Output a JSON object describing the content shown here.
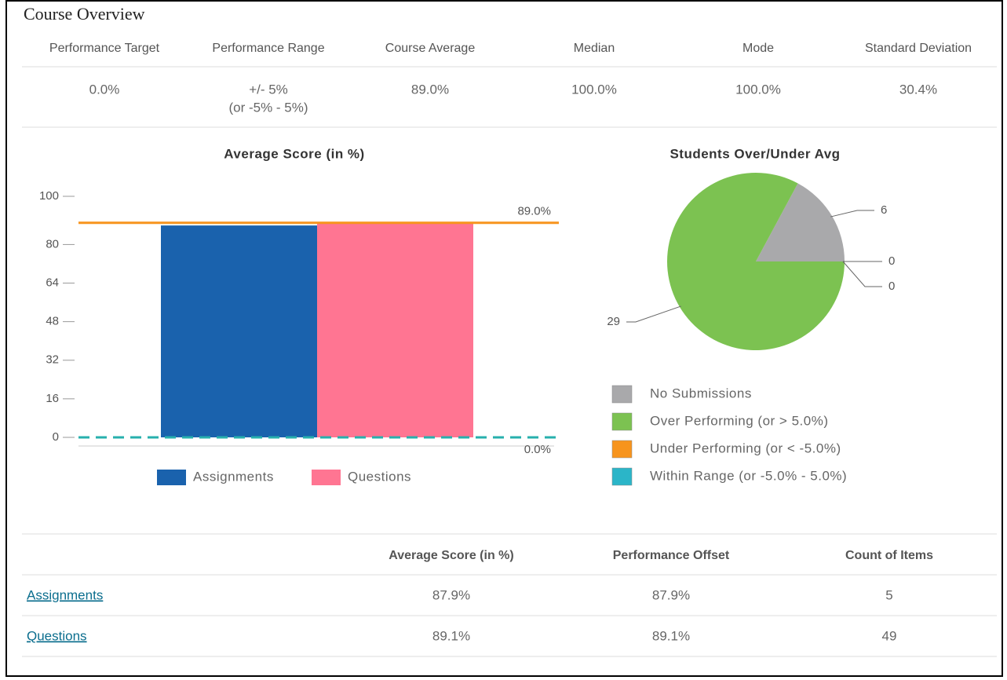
{
  "header": {
    "title": "Course Overview"
  },
  "stats": {
    "headers": [
      "Performance Target",
      "Performance Range",
      "Course Average",
      "Median",
      "Mode",
      "Standard Deviation"
    ],
    "values": [
      [
        "0.0%"
      ],
      [
        "+/- 5%",
        "(or -5% - 5%)"
      ],
      [
        "89.0%"
      ],
      [
        "100.0%"
      ],
      [
        "100.0%"
      ],
      [
        "30.4%"
      ]
    ]
  },
  "chart_data": [
    {
      "type": "bar",
      "title": "Average Score (in %)",
      "categories": [
        null
      ],
      "series": [
        {
          "name": "Assignments",
          "color": "#1a62ad",
          "values": [
            87.9
          ]
        },
        {
          "name": "Questions",
          "color": "#ff7592",
          "values": [
            89.1
          ]
        }
      ],
      "ylim": [
        0,
        100
      ],
      "yticks": [
        0,
        16,
        32,
        48,
        64,
        80,
        100
      ],
      "reference_lines": [
        {
          "value": 89,
          "label": "89.0%",
          "color": "#f7941d",
          "dashed": false
        },
        {
          "value": 0,
          "label": "0.0%",
          "color": "#27b0ad",
          "dashed": true
        }
      ]
    },
    {
      "type": "pie",
      "title": "Students Over/Under Avg",
      "categories": [
        "No Submissions",
        "Over Performing (or > 5.0%)",
        "Under Performing (or < -5.0%)",
        "Within Range (or -5.0% - 5.0%)"
      ],
      "values": [
        6,
        29,
        0,
        0
      ],
      "colors": [
        "#a9a9ab",
        "#7cc251",
        "#f7941d",
        "#2bb5c8"
      ]
    }
  ],
  "table": {
    "headers": [
      "Average Score (in %)",
      "Performance Offset",
      "Count of Items"
    ],
    "rows": [
      {
        "name": "Assignments",
        "cells": [
          "87.9%",
          "87.9%",
          "5"
        ]
      },
      {
        "name": "Questions",
        "cells": [
          "89.1%",
          "89.1%",
          "49"
        ]
      }
    ]
  }
}
